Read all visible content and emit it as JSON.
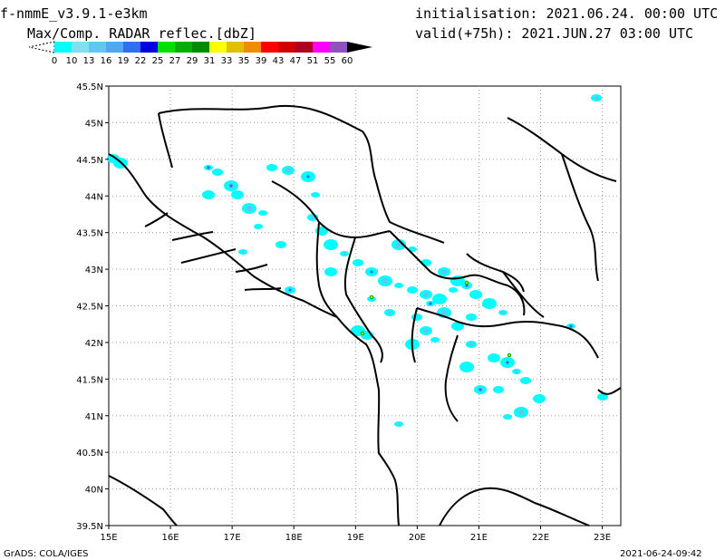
{
  "header": {
    "model": "f-nmmE_v3.9.1-e3km",
    "product": "Max/Comp. RADAR reflec.[dbZ]",
    "initialisation": "initialisation: 2021.06.24. 00:00 UTC",
    "valid": "valid(+75h): 2021.JUN.27 03:00 UTC"
  },
  "colorbar": {
    "labels": [
      "0",
      "10",
      "13",
      "16",
      "19",
      "22",
      "25",
      "27",
      "29",
      "31",
      "33",
      "35",
      "39",
      "43",
      "47",
      "51",
      "55",
      "60"
    ],
    "colors": [
      "#00ffff",
      "#80e0f0",
      "#60c8f0",
      "#50a8f0",
      "#3070f0",
      "#0000e0",
      "#00e000",
      "#00b000",
      "#008c00",
      "#ffff00",
      "#e0c000",
      "#f08c00",
      "#ff0000",
      "#d00000",
      "#b00020",
      "#ff00ff",
      "#9050c0",
      "#000000"
    ]
  },
  "map": {
    "lat_labels": [
      "45.5N",
      "45N",
      "44.5N",
      "44N",
      "43.5N",
      "43N",
      "42.5N",
      "42N",
      "41.5N",
      "41N",
      "40.5N",
      "40N",
      "39.5N"
    ],
    "lon_labels": [
      "15E",
      "16E",
      "17E",
      "18E",
      "19E",
      "20E",
      "21E",
      "22E",
      "23E"
    ],
    "lat_range": [
      39.5,
      45.5
    ],
    "lon_range": [
      15,
      23.3
    ],
    "grid": true
  },
  "footer": {
    "credit": "GrADS: COLA/IGES",
    "generated": "2021-06-24-09:42"
  }
}
